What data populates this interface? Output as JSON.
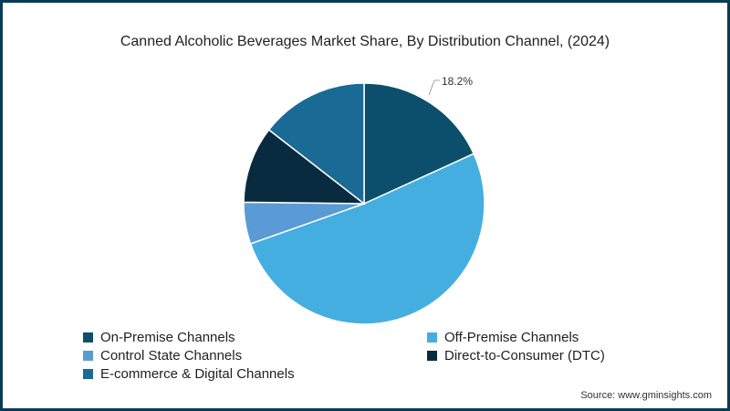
{
  "chart_data": {
    "type": "pie",
    "title": "Canned Alcoholic Beverages Market Share, By Distribution Channel, (2024)",
    "categories": [
      "On-Premise Channels",
      "Off-Premise Channels",
      "Control State Channels",
      "Direct-to-Consumer (DTC)",
      "E-commerce & Digital Channels"
    ],
    "values": [
      18.2,
      51.4,
      5.6,
      10.3,
      14.5
    ],
    "colors": [
      "#0b4f6c",
      "#45aee0",
      "#5b9bd5",
      "#082b40",
      "#1a6a96"
    ],
    "data_labels": [
      {
        "category": "On-Premise Channels",
        "text": "18.2%"
      }
    ],
    "start_angle": "12 o'clock, clockwise",
    "legend_position": "bottom"
  },
  "title": "Canned Alcoholic Beverages Market Share, By Distribution Channel, (2024)",
  "legend": [
    {
      "label": "On-Premise Channels",
      "color": "#0b4f6c"
    },
    {
      "label": "Off-Premise Channels",
      "color": "#45aee0"
    },
    {
      "label": "Control State Channels",
      "color": "#5b9bd5"
    },
    {
      "label": "Direct-to-Consumer (DTC)",
      "color": "#082b40"
    },
    {
      "label": "E-commerce & Digital Channels",
      "color": "#1a6a96"
    }
  ],
  "label_18_2": "18.2%",
  "source": "Source: www.gminsights.com"
}
